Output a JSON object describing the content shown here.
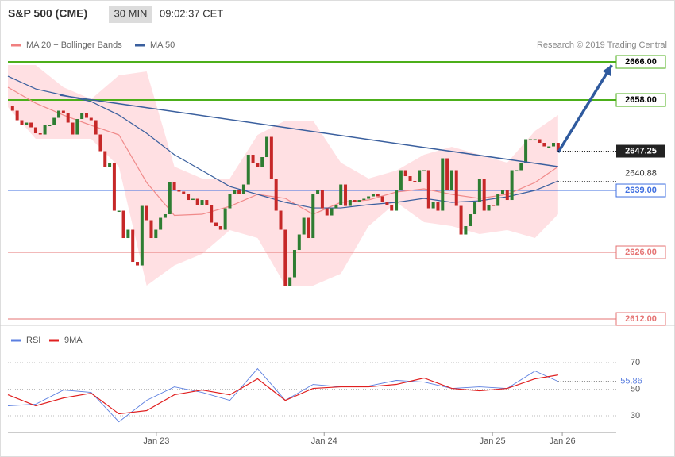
{
  "chart_data": [
    {
      "type": "candlestick",
      "title": "S&P 500 (CME)",
      "interval": "30 MIN",
      "time": "09:02:37 CET",
      "source": "Research © 2019 Trading Central",
      "open": [
        2656.75,
        2655.75,
        2653.75,
        2652.75,
        2653.25,
        2652.25,
        2651,
        2650.75,
        2652.75,
        2652.75,
        2654.25,
        2655.75,
        2655.25,
        2653.25,
        2650.75,
        2654,
        2655.25,
        2654.25,
        2653.75,
        2650.75,
        2647.25,
        2644,
        2644.75,
        2634.75,
        2634.75,
        2629,
        2630.75,
        2624,
        2623.25,
        2635.75,
        2632.75,
        2629,
        2630.75,
        2633.25,
        2634,
        2640.75,
        2639,
        2638.75,
        2638.25,
        2637,
        2637.25,
        2636,
        2637,
        2636,
        2632.25,
        2631.5,
        2630.75,
        2635.25,
        2638.25,
        2639,
        2638.25,
        2640.25,
        2646.5,
        2644.75,
        2644,
        2646,
        2650.25,
        2641.5,
        2634.75,
        2630.75,
        2619,
        2620.75,
        2626.5,
        2629.75,
        2633.25,
        2629,
        2638.25,
        2639,
        2635.25,
        2633.75,
        2635.25,
        2636,
        2640.25,
        2635.75,
        2637,
        2636.5,
        2637,
        2637.25,
        2637.75,
        2638.25,
        2637.75,
        2636.5,
        2636,
        2634.75,
        2639,
        2643.25,
        2642,
        2641,
        2640.75,
        2643.25,
        2643.25,
        2635.25,
        2636.5,
        2634.75,
        2645.75,
        2639,
        2643.25,
        2635.75,
        2629.75,
        2631.5,
        2634,
        2636.5,
        2641.5,
        2634.75,
        2636,
        2635.75,
        2638.25,
        2639,
        2637,
        2643.25,
        2643.25,
        2644.75,
        2649.75,
        2649.75,
        2649.75,
        2649,
        2648.25,
        2648.25,
        2649
      ],
      "close": [
        2655.75,
        2653.75,
        2652.75,
        2653.25,
        2652.25,
        2651,
        2650.75,
        2652.75,
        2652.75,
        2654.25,
        2655.75,
        2655.25,
        2653.25,
        2650.75,
        2654,
        2655.25,
        2654.25,
        2653.75,
        2650.75,
        2647.25,
        2644,
        2644.75,
        2634.75,
        2634.75,
        2629,
        2630.75,
        2624,
        2623.25,
        2635.75,
        2632.75,
        2629,
        2630.75,
        2633.25,
        2634,
        2640.75,
        2639,
        2638.75,
        2638.25,
        2637,
        2637.25,
        2636,
        2637,
        2636,
        2632.25,
        2631.5,
        2630.75,
        2635.25,
        2638.25,
        2639,
        2638.25,
        2640.25,
        2646.5,
        2644.75,
        2644,
        2646,
        2650.25,
        2641.5,
        2634.75,
        2630.75,
        2619,
        2620.75,
        2626.5,
        2629.75,
        2633.25,
        2629,
        2638.25,
        2639,
        2635.25,
        2633.75,
        2635.25,
        2636,
        2640.25,
        2635.75,
        2637,
        2636.5,
        2637,
        2637.25,
        2637.75,
        2638.25,
        2637.75,
        2636.5,
        2636,
        2634.75,
        2639,
        2643.25,
        2642,
        2641,
        2640.75,
        2643.25,
        2643.25,
        2635.25,
        2636.5,
        2634.75,
        2645.75,
        2639,
        2643.25,
        2635.75,
        2629.75,
        2631.5,
        2634,
        2636.5,
        2641.5,
        2634.75,
        2636,
        2635.75,
        2638.25,
        2639,
        2637,
        2643.25,
        2643.25,
        2644.75,
        2649.75,
        2649.75,
        2649.75,
        2649,
        2648.25,
        2648.25,
        2649,
        2647.25
      ],
      "up_color": "#2e7d32",
      "down_color": "#c62828",
      "overlay_x": [
        -1,
        5,
        11,
        17,
        23,
        29,
        35,
        41,
        47,
        53,
        59,
        65,
        71,
        77,
        83,
        89,
        95,
        101,
        107,
        113,
        118
      ],
      "series": [
        {
          "name": "MA 20 + Bollinger Bands",
          "color": "#f08a8a",
          "band_color": "#ffe0e3",
          "values": [
            2660.67,
            2657.33,
            2654.83,
            2652.67,
            2650.67,
            2640.67,
            2633.75,
            2634,
            2635.67,
            2638.17,
            2637.33,
            2634,
            2636.5,
            2637,
            2638.67,
            2639.33,
            2638.17,
            2637.33,
            2638.17,
            2640.67,
            2644
          ],
          "upper": [
            2665.33,
            2665.33,
            2660.67,
            2658.17,
            2663.17,
            2664,
            2644,
            2641.5,
            2641.5,
            2650.67,
            2653.67,
            2653.67,
            2644.83,
            2641.5,
            2643.17,
            2646.5,
            2648.17,
            2646.5,
            2644.83,
            2651.5,
            2654.83
          ],
          "lower": [
            2656.5,
            2649.83,
            2649.83,
            2649.83,
            2644,
            2619,
            2623.25,
            2625.67,
            2630.67,
            2629,
            2619,
            2619,
            2621.5,
            2631.5,
            2636.5,
            2632.33,
            2631.5,
            2629.83,
            2630.67,
            2629,
            2634
          ]
        },
        {
          "name": "MA 50",
          "color": "#3a5f9e",
          "values": [
            2663,
            2660.33,
            2659,
            2657.67,
            2654.83,
            2651,
            2646.5,
            2643.17,
            2639.83,
            2638.17,
            2636.5,
            2635.33,
            2635.33,
            2636,
            2636.5,
            2637.33,
            2636.5,
            2636.83,
            2637.67,
            2639,
            2641
          ]
        }
      ],
      "trendline": {
        "x": [
          10.2,
          118
        ],
        "values": [
          2659,
          2644
        ],
        "color": "#3a5f9e"
      },
      "arrow": {
        "x": [
          118,
          129.6
        ],
        "values": [
          2647,
          2665.33
        ],
        "color": "#2f5a9e"
      },
      "levels": [
        {
          "value": 2666,
          "label": "2666.00",
          "color": "#4caf1a"
        },
        {
          "value": 2658,
          "label": "2658.00",
          "color": "#4caf1a"
        },
        {
          "value": 2639,
          "label": "2639.00",
          "color": "#3f6fe0"
        },
        {
          "value": 2626,
          "label": "2626.00",
          "color": "#e57373"
        },
        {
          "value": 2612,
          "label": "2612.00",
          "color": "#e57373"
        }
      ],
      "last_price": 2647.25,
      "ma_value": 2640.88,
      "xlim": [
        -1,
        126.1
      ],
      "ylim": [
        2610.67,
        2668.67
      ],
      "xticks": [
        {
          "value": 31.1,
          "label": "Jan 23"
        },
        {
          "value": 67.4,
          "label": "Jan 24"
        },
        {
          "value": 103.8,
          "label": "Jan 25"
        },
        {
          "value": 118.9,
          "label": "Jan 26"
        }
      ]
    },
    {
      "type": "line",
      "x": [
        -1,
        5,
        11,
        17,
        23,
        29,
        35,
        41,
        47,
        53,
        59,
        65,
        71,
        77,
        83,
        89,
        95,
        101,
        107,
        113,
        118
      ],
      "series": [
        {
          "name": "RSI",
          "color": "#5b7fe0",
          "values": [
            37.5,
            38.7,
            49.4,
            47.6,
            25.5,
            41.6,
            51.8,
            47.6,
            41.6,
            65.5,
            41.6,
            53.6,
            51.8,
            52.4,
            56.6,
            55.4,
            50.6,
            51.8,
            50.6,
            63.7,
            55.86
          ]
        },
        {
          "name": "9MA",
          "color": "#e02020",
          "values": [
            45.8,
            37.5,
            43.4,
            47,
            31.5,
            33.9,
            45.8,
            49.4,
            45.8,
            57.8,
            41.6,
            50.6,
            51.8,
            51.8,
            53.6,
            58.4,
            50.6,
            48.8,
            50.6,
            57.8,
            60.7
          ]
        }
      ],
      "last_value": 55.86,
      "xlim": [
        -1,
        126.1
      ],
      "ylim": [
        17.5,
        96.3
      ],
      "yticks": [
        30,
        50,
        70
      ],
      "grid": true
    }
  ]
}
